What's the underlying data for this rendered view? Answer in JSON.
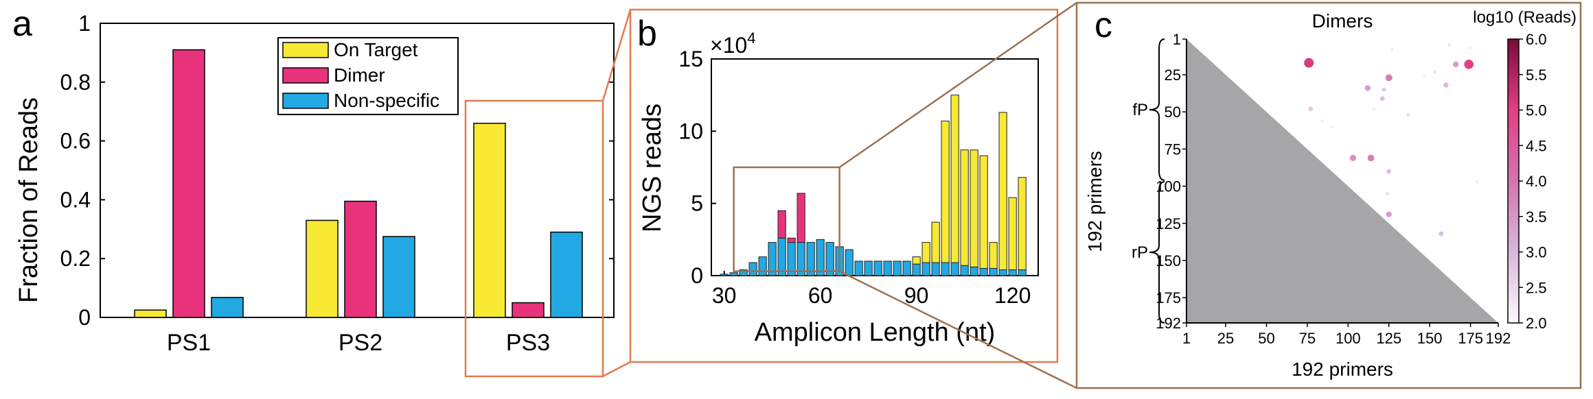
{
  "colors": {
    "on_target": "#F7E934",
    "dimer": "#E8337C",
    "non_specific": "#22A8E2",
    "zoom_box_a": "#E07B4F",
    "zoom_box_b": "#9B7150",
    "lower_triangle": "#A6A6A8"
  },
  "panels": {
    "a": "a",
    "b": "b",
    "c": "c"
  },
  "chart_data": [
    {
      "panel": "a",
      "type": "bar",
      "ylabel": "Fraction of Reads",
      "ylim": [
        0,
        1
      ],
      "y_ticks": [
        "0",
        "0.2",
        "0.4",
        "0.6",
        "0.8",
        "1"
      ],
      "y_tick_values": [
        0,
        0.2,
        0.4,
        0.6,
        0.8,
        1
      ],
      "categories": [
        "PS1",
        "PS2",
        "PS3"
      ],
      "legend_placement": "top-center",
      "series": [
        {
          "name": "On Target",
          "values": [
            0.025,
            0.33,
            0.66
          ]
        },
        {
          "name": "Dimer",
          "values": [
            0.91,
            0.395,
            0.05
          ]
        },
        {
          "name": "Non-specific",
          "values": [
            0.068,
            0.275,
            0.29
          ]
        }
      ]
    },
    {
      "panel": "b",
      "type": "bar",
      "stacked": true,
      "xlabel": "Amplicon Length (nt)",
      "ylabel": "NGS reads",
      "y_multiplier": "×10",
      "y_multiplier_exp": "4",
      "xlim": [
        26,
        128
      ],
      "ylim": [
        0,
        15
      ],
      "x_ticks": [
        "30",
        "60",
        "90",
        "120"
      ],
      "x_tick_values": [
        30,
        60,
        90,
        120
      ],
      "y_ticks": [
        "0",
        "5",
        "10",
        "15"
      ],
      "y_tick_values": [
        0,
        5,
        10,
        15
      ],
      "bin_width": 3,
      "x": [
        30,
        33,
        36,
        39,
        42,
        45,
        48,
        51,
        54,
        57,
        60,
        63,
        66,
        69,
        72,
        75,
        78,
        81,
        84,
        87,
        90,
        93,
        96,
        99,
        102,
        105,
        108,
        111,
        114,
        117,
        120,
        123
      ],
      "series": [
        {
          "name": "Non-specific",
          "values": [
            0.1,
            0.2,
            0.4,
            0.9,
            1.3,
            2.3,
            2.6,
            2.3,
            2.3,
            2.3,
            2.5,
            2.3,
            2.0,
            1.8,
            1.0,
            1.0,
            1.0,
            1.0,
            1.0,
            1.0,
            0.8,
            0.9,
            0.9,
            0.9,
            0.9,
            0.7,
            0.6,
            0.5,
            0.5,
            0.4,
            0.4,
            0.4
          ]
        },
        {
          "name": "Dimer",
          "values": [
            0,
            0,
            0,
            0,
            0,
            0,
            1.9,
            0.3,
            3.4,
            0,
            0,
            0,
            0,
            0,
            0,
            0,
            0,
            0,
            0,
            0,
            0,
            0,
            0,
            0,
            0,
            0,
            0,
            0,
            0,
            0,
            0,
            0
          ]
        },
        {
          "name": "On Target",
          "values": [
            0,
            0,
            0,
            0,
            0,
            0,
            0,
            0,
            0,
            0,
            0,
            0,
            0,
            0,
            0,
            0,
            0,
            0,
            0,
            0,
            0.5,
            1.4,
            2.8,
            9.8,
            11.6,
            8.0,
            8.1,
            7.8,
            1.8,
            10.9,
            5.0,
            6.4
          ]
        }
      ],
      "zoom_box": {
        "x": [
          33,
          66
        ],
        "y": [
          0.3,
          7.5
        ]
      }
    },
    {
      "panel": "c",
      "type": "scatter",
      "title": "Dimers",
      "xlabel": "192 primers",
      "ylabel": "192 primers",
      "x_ticks": [
        "1",
        "25",
        "50",
        "75",
        "100",
        "125",
        "150",
        "175",
        "192"
      ],
      "x_tick_values": [
        1,
        25,
        50,
        75,
        100,
        125,
        150,
        175,
        192
      ],
      "y_ticks": [
        "1",
        "25",
        "50",
        "75",
        "100",
        "125",
        "150",
        "175",
        "192"
      ],
      "y_tick_values": [
        1,
        25,
        50,
        75,
        100,
        125,
        150,
        175,
        192
      ],
      "y_reversed": true,
      "groups": [
        {
          "label": "fP",
          "range": [
            1,
            96
          ]
        },
        {
          "label": "rP",
          "range": [
            97,
            192
          ]
        }
      ],
      "colorbar": {
        "label": "log10 (Reads)",
        "range": [
          2.0,
          6.0
        ],
        "ticks": [
          "2.0",
          "2.5",
          "3.0",
          "3.5",
          "4.0",
          "4.5",
          "5.0",
          "5.5",
          "6.0"
        ],
        "tick_values": [
          2.0,
          2.5,
          3.0,
          3.5,
          4.0,
          4.5,
          5.0,
          5.5,
          6.0
        ]
      },
      "points": [
        {
          "x": 76,
          "y": 17,
          "value": 5.1
        },
        {
          "x": 174,
          "y": 18,
          "value": 5.0
        },
        {
          "x": 125,
          "y": 27,
          "value": 3.9
        },
        {
          "x": 166,
          "y": 18,
          "value": 3.4
        },
        {
          "x": 112,
          "y": 34,
          "value": 3.4
        },
        {
          "x": 160,
          "y": 32,
          "value": 3.0
        },
        {
          "x": 121,
          "y": 41,
          "value": 2.9
        },
        {
          "x": 122,
          "y": 35,
          "value": 2.7
        },
        {
          "x": 77,
          "y": 48,
          "value": 2.8
        },
        {
          "x": 103,
          "y": 81,
          "value": 3.6
        },
        {
          "x": 114,
          "y": 81,
          "value": 3.8
        },
        {
          "x": 125,
          "y": 90,
          "value": 2.9
        },
        {
          "x": 125,
          "y": 119,
          "value": 3.4
        },
        {
          "x": 157,
          "y": 132,
          "value": 2.9
        },
        {
          "x": 124,
          "y": 105,
          "value": 2.4
        },
        {
          "x": 137,
          "y": 52,
          "value": 2.4
        },
        {
          "x": 153,
          "y": 23,
          "value": 2.3
        },
        {
          "x": 162,
          "y": 5,
          "value": 2.3
        },
        {
          "x": 175,
          "y": 7,
          "value": 2.2
        },
        {
          "x": 127,
          "y": 8,
          "value": 2.2
        },
        {
          "x": 179,
          "y": 97,
          "value": 2.2
        },
        {
          "x": 90,
          "y": 60,
          "value": 2.2
        },
        {
          "x": 147,
          "y": 26,
          "value": 2.2
        },
        {
          "x": 116,
          "y": 48,
          "value": 2.2
        },
        {
          "x": 84,
          "y": 56,
          "value": 2.2
        }
      ]
    }
  ]
}
